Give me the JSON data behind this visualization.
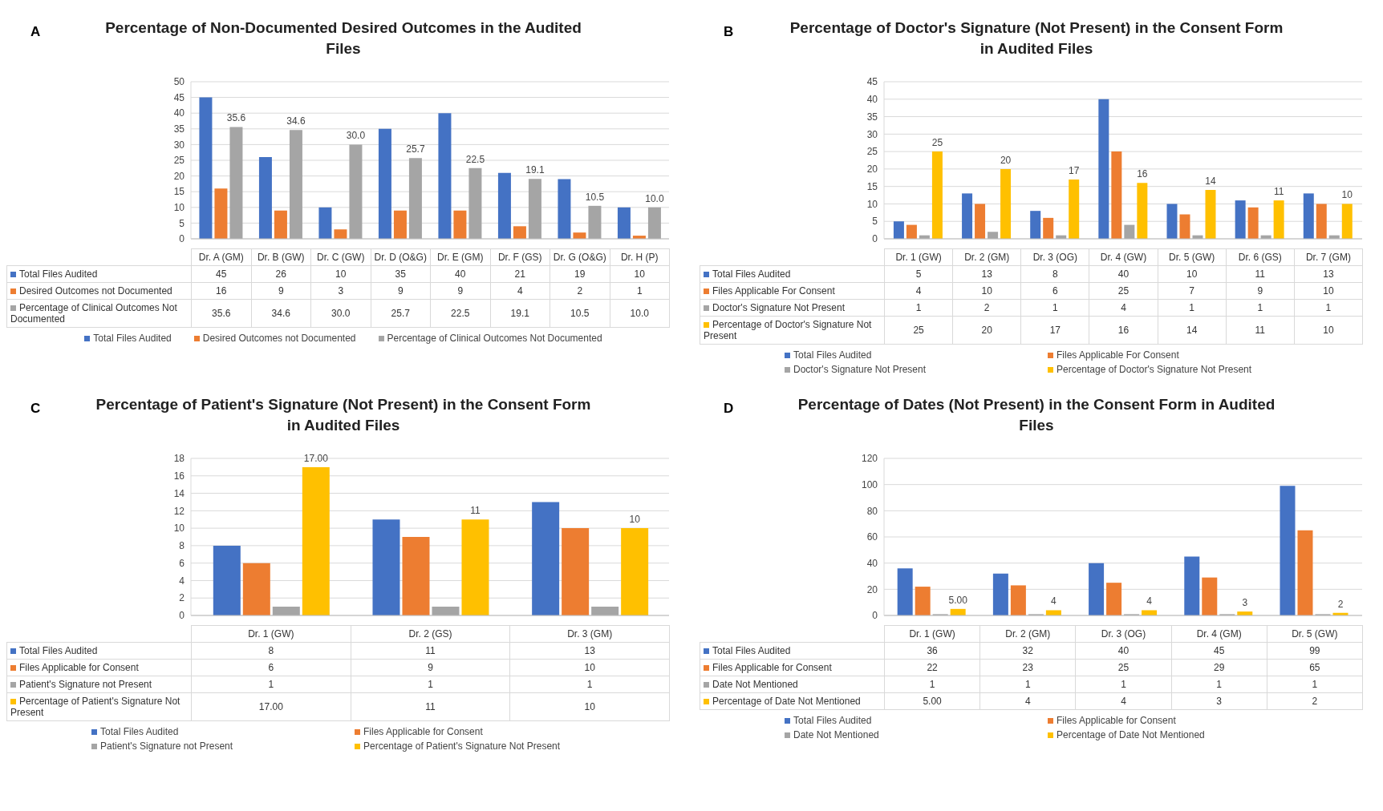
{
  "chart_data": [
    {
      "type": "bar",
      "title": "Percentage of Non-Documented Desired Outcomes in the Audited Files",
      "annotations": [
        "A"
      ],
      "categories": [
        "Dr. A (GM)",
        "Dr. B (GW)",
        "Dr. C (GW)",
        "Dr. D (O&G)",
        "Dr. E (GM)",
        "Dr. F (GS)",
        "Dr. G (O&G)",
        "Dr. H (P)"
      ],
      "ylim": [
        0,
        50
      ],
      "yticks": [
        0,
        5,
        10,
        15,
        20,
        25,
        30,
        35,
        40,
        45,
        50
      ],
      "grid": "y",
      "legend": "bottom",
      "series": [
        {
          "name": "Total Files Audited",
          "color": "#4472c4",
          "values": [
            45,
            26,
            10,
            35,
            40,
            21,
            19,
            10
          ],
          "value_labels": [
            "45",
            "26",
            "10",
            "35",
            "40",
            "21",
            "19",
            "10"
          ]
        },
        {
          "name": "Desired Outcomes not Documented",
          "color": "#ed7d31",
          "values": [
            16,
            9,
            3,
            9,
            9,
            4,
            2,
            1
          ],
          "value_labels": [
            "16",
            "9",
            "3",
            "9",
            "9",
            "4",
            "2",
            "1"
          ]
        },
        {
          "name": "Percentage of Clinical Outcomes Not Documented",
          "color": "#a5a5a5",
          "values": [
            35.6,
            34.6,
            30.0,
            25.7,
            22.5,
            19.1,
            10.5,
            10.0
          ],
          "value_labels": [
            "35.6",
            "34.6",
            "30.0",
            "25.7",
            "22.5",
            "19.1",
            "10.5",
            "10.0"
          ],
          "data_labels": true
        }
      ]
    },
    {
      "type": "bar",
      "title": "Percentage of Doctor's Signature (Not Present) in the Consent Form in Audited Files",
      "annotations": [
        "B"
      ],
      "categories": [
        "Dr. 1 (GW)",
        "Dr. 2 (GM)",
        "Dr. 3 (OG)",
        "Dr. 4 (GW)",
        "Dr. 5 (GW)",
        "Dr. 6 (GS)",
        "Dr. 7 (GM)"
      ],
      "ylim": [
        0,
        45
      ],
      "yticks": [
        0,
        5,
        10,
        15,
        20,
        25,
        30,
        35,
        40,
        45
      ],
      "grid": "y",
      "legend": "bottom",
      "series": [
        {
          "name": "Total Files Audited",
          "color": "#4472c4",
          "values": [
            5,
            13,
            8,
            40,
            10,
            11,
            13
          ],
          "value_labels": [
            "5",
            "13",
            "8",
            "40",
            "10",
            "11",
            "13"
          ]
        },
        {
          "name": "Files Applicable For Consent",
          "color": "#ed7d31",
          "values": [
            4,
            10,
            6,
            25,
            7,
            9,
            10
          ],
          "value_labels": [
            "4",
            "10",
            "6",
            "25",
            "7",
            "9",
            "10"
          ]
        },
        {
          "name": "Doctor's Signature Not Present",
          "color": "#a5a5a5",
          "values": [
            1,
            2,
            1,
            4,
            1,
            1,
            1
          ],
          "value_labels": [
            "1",
            "2",
            "1",
            "4",
            "1",
            "1",
            "1"
          ]
        },
        {
          "name": "Percentage of Doctor's Signature Not Present",
          "color": "#ffc000",
          "values": [
            25,
            20,
            17,
            16,
            14,
            11,
            10
          ],
          "value_labels": [
            "25",
            "20",
            "17",
            "16",
            "14",
            "11",
            "10"
          ],
          "data_labels": true
        }
      ]
    },
    {
      "type": "bar",
      "title": "Percentage of Patient's Signature (Not Present) in the Consent Form in Audited Files",
      "annotations": [
        "C"
      ],
      "categories": [
        "Dr. 1 (GW)",
        "Dr. 2 (GS)",
        "Dr. 3 (GM)"
      ],
      "ylim": [
        0,
        18
      ],
      "yticks": [
        0,
        2,
        4,
        6,
        8,
        10,
        12,
        14,
        16,
        18
      ],
      "grid": "y",
      "legend": "bottom",
      "series": [
        {
          "name": "Total Files Audited",
          "color": "#4472c4",
          "values": [
            8,
            11,
            13
          ],
          "value_labels": [
            "8",
            "11",
            "13"
          ]
        },
        {
          "name": "Files Applicable for Consent",
          "color": "#ed7d31",
          "values": [
            6,
            9,
            10
          ],
          "value_labels": [
            "6",
            "9",
            "10"
          ]
        },
        {
          "name": "Patient's Signature not Present",
          "color": "#a5a5a5",
          "values": [
            1,
            1,
            1
          ],
          "value_labels": [
            "1",
            "1",
            "1"
          ]
        },
        {
          "name": "Percentage of Patient's Signature Not Present",
          "color": "#ffc000",
          "values": [
            17,
            11,
            10
          ],
          "value_labels": [
            "17.00",
            "11",
            "10"
          ],
          "data_labels": true
        }
      ]
    },
    {
      "type": "bar",
      "title": "Percentage of Dates (Not Present) in the Consent Form in Audited Files",
      "annotations": [
        "D"
      ],
      "categories": [
        "Dr. 1 (GW)",
        "Dr. 2 (GM)",
        "Dr. 3 (OG)",
        "Dr. 4 (GM)",
        "Dr. 5 (GW)"
      ],
      "ylim": [
        0,
        120
      ],
      "yticks": [
        0,
        20,
        40,
        60,
        80,
        100,
        120
      ],
      "grid": "y",
      "legend": "bottom",
      "series": [
        {
          "name": "Total Files Audited",
          "color": "#4472c4",
          "values": [
            36,
            32,
            40,
            45,
            99
          ],
          "value_labels": [
            "36",
            "32",
            "40",
            "45",
            "99"
          ]
        },
        {
          "name": "Files Applicable for Consent",
          "color": "#ed7d31",
          "values": [
            22,
            23,
            25,
            29,
            65
          ],
          "value_labels": [
            "22",
            "23",
            "25",
            "29",
            "65"
          ]
        },
        {
          "name": "Date Not Mentioned",
          "color": "#a5a5a5",
          "values": [
            1,
            1,
            1,
            1,
            1
          ],
          "value_labels": [
            "1",
            "1",
            "1",
            "1",
            "1"
          ]
        },
        {
          "name": "Percentage of Date Not Mentioned",
          "color": "#ffc000",
          "values": [
            5,
            4,
            4,
            3,
            2
          ],
          "value_labels": [
            "5.00",
            "4",
            "4",
            "3",
            "2"
          ],
          "data_labels": true
        }
      ]
    }
  ]
}
